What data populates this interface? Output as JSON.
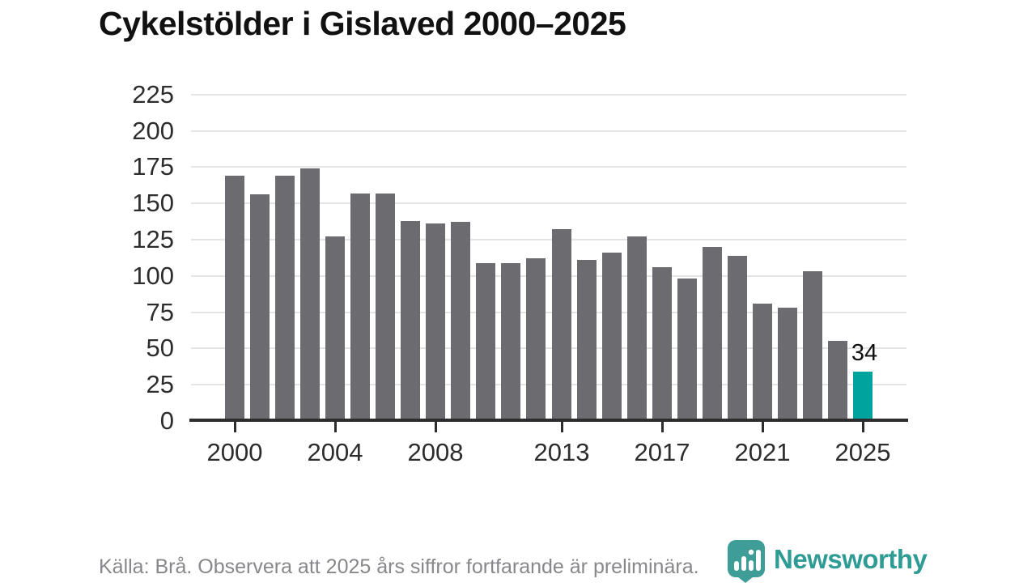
{
  "title": "Cykelstölder i Gislaved 2000–2025",
  "footer": {
    "source_note": "Källa: Brå. Observera att 2025 års siffror fortfarande är preliminära."
  },
  "branding": {
    "logo_text": "Newsworthy",
    "logo_icon": "bar-chart-bubble-icon",
    "brand_color": "#3e9d97",
    "wordmark_color": "#2e9b95"
  },
  "chart_data": {
    "type": "bar",
    "title": "Cykelstölder i Gislaved 2000–2025",
    "x": [
      2000,
      2001,
      2002,
      2003,
      2004,
      2005,
      2006,
      2007,
      2008,
      2009,
      2010,
      2011,
      2012,
      2013,
      2014,
      2015,
      2016,
      2017,
      2018,
      2019,
      2020,
      2021,
      2022,
      2023,
      2024,
      2025
    ],
    "values": [
      169,
      156,
      169,
      174,
      127,
      157,
      157,
      138,
      136,
      137,
      109,
      109,
      112,
      132,
      111,
      116,
      127,
      106,
      98,
      120,
      114,
      81,
      78,
      103,
      55,
      34
    ],
    "highlight_x": 2025,
    "highlight_value_label": "34",
    "xticks": [
      2000,
      2004,
      2008,
      2013,
      2017,
      2021,
      2025
    ],
    "yticks": [
      0,
      25,
      50,
      75,
      100,
      125,
      150,
      175,
      200,
      225
    ],
    "ylim": [
      0,
      225
    ],
    "xlabel": "",
    "ylabel": "",
    "grid": "horizontal",
    "legend": "none",
    "bar_color": "#6b6b70",
    "highlight_color": "#00a39d",
    "grid_color": "#e4e4e4",
    "axis_color": "#2d2d2d",
    "label_color": "#2d2d2d"
  }
}
